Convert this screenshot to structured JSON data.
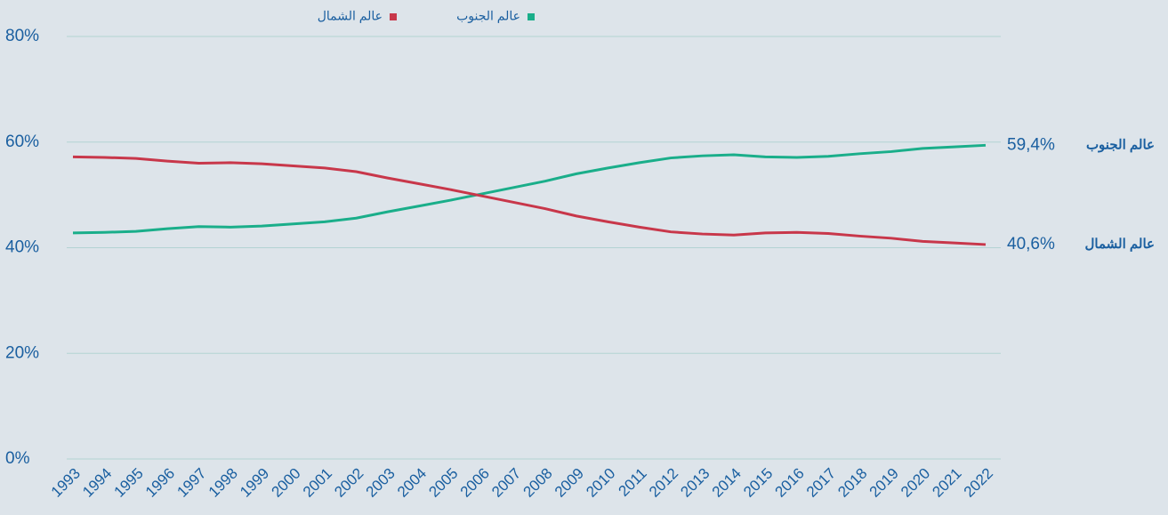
{
  "chart_data": {
    "type": "line",
    "categories": [
      "1993",
      "1994",
      "1995",
      "1996",
      "1997",
      "1998",
      "1999",
      "2000",
      "2001",
      "2002",
      "2003",
      "2004",
      "2005",
      "2006",
      "2007",
      "2008",
      "2009",
      "2010",
      "2011",
      "2012",
      "2013",
      "2014",
      "2015",
      "2016",
      "2017",
      "2018",
      "2019",
      "2020",
      "2021",
      "2022"
    ],
    "series": [
      {
        "name": "عالم الجنوب",
        "color": "#1aae8a",
        "values": [
          42.8,
          42.9,
          43.1,
          43.6,
          44.0,
          43.9,
          44.1,
          44.5,
          44.9,
          45.6,
          46.8,
          47.9,
          49.0,
          50.2,
          51.4,
          52.6,
          54.0,
          55.1,
          56.1,
          57.0,
          57.4,
          57.6,
          57.2,
          57.1,
          57.3,
          57.8,
          58.2,
          58.8,
          59.1,
          59.4
        ],
        "value_labels": [
          null,
          null,
          null,
          null,
          null,
          null,
          null,
          null,
          null,
          null,
          null,
          null,
          null,
          null,
          null,
          null,
          null,
          null,
          null,
          null,
          null,
          null,
          null,
          null,
          null,
          null,
          null,
          null,
          null,
          "59,4%"
        ]
      },
      {
        "name": "عالم الشمال",
        "color": "#c8374a",
        "values": [
          57.2,
          57.1,
          56.9,
          56.4,
          56.0,
          56.1,
          55.9,
          55.5,
          55.1,
          54.4,
          53.2,
          52.1,
          51.0,
          49.8,
          48.6,
          47.4,
          46.0,
          44.9,
          43.9,
          43.0,
          42.6,
          42.4,
          42.8,
          42.9,
          42.7,
          42.2,
          41.8,
          41.2,
          40.9,
          40.6
        ],
        "value_labels": [
          null,
          null,
          null,
          null,
          null,
          null,
          null,
          null,
          null,
          null,
          null,
          null,
          null,
          null,
          null,
          null,
          null,
          null,
          null,
          null,
          null,
          null,
          null,
          null,
          null,
          null,
          null,
          null,
          null,
          "40,6%"
        ]
      }
    ],
    "ylim": [
      0,
      80
    ],
    "yticks": [
      {
        "value": 0,
        "label": "0%"
      },
      {
        "value": 20,
        "label": "20%"
      },
      {
        "value": 40,
        "label": "40%"
      },
      {
        "value": 60,
        "label": "60%"
      },
      {
        "value": 80,
        "label": "80%"
      }
    ],
    "grid": true,
    "legend": "top"
  }
}
